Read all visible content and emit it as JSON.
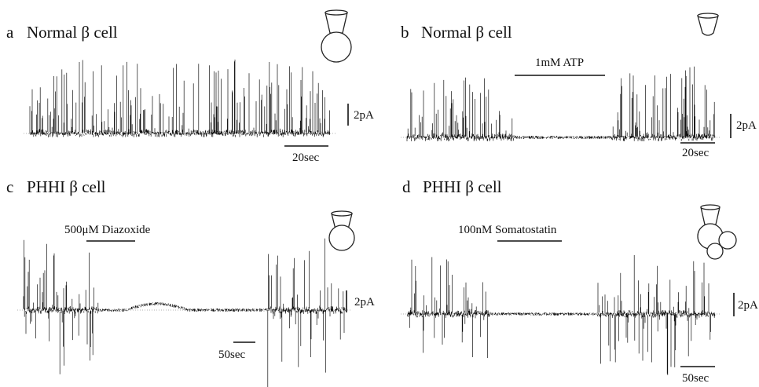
{
  "panels": [
    {
      "letter": "a",
      "title": "Normal β cell",
      "scale_y": "2pA",
      "scale_x": "20sec"
    },
    {
      "letter": "b",
      "title": "Normal β cell",
      "drug": "1mM ATP",
      "scale_y": "2pA",
      "scale_x": "20sec"
    },
    {
      "letter": "c",
      "title": "PHHI β cell",
      "drug": "500μM Diazoxide",
      "scale_y": "2pA",
      "scale_x": "50sec"
    },
    {
      "letter": "d",
      "title": "PHHI β cell",
      "drug": "100nM Somatostatin",
      "scale_y": "2pA",
      "scale_x": "50sec"
    }
  ]
}
